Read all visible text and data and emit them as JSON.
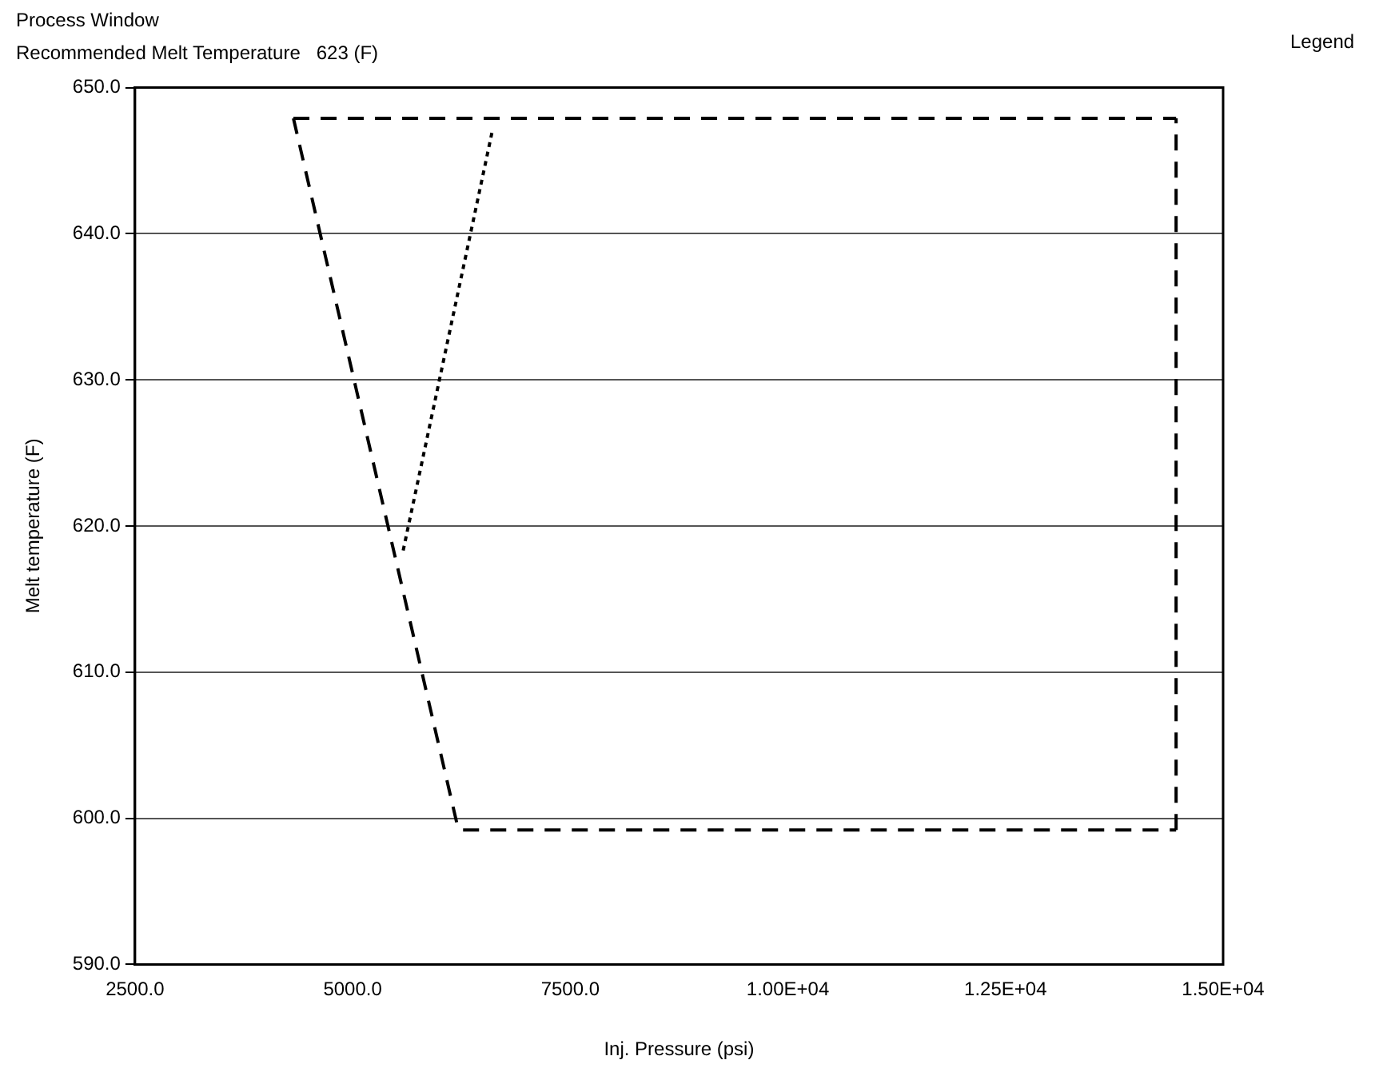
{
  "chart_data": {
    "type": "line",
    "title": "Process Window",
    "subtitle": "Recommended Melt Temperature   623 (F)",
    "xlabel": "Inj. Pressure (psi)",
    "ylabel": "Melt temperature (F)",
    "annotations": [
      "Legend"
    ],
    "series": [
      {
        "color": "#000000",
        "line_style": "dashed",
        "x": [
          4320,
          6200,
          6240,
          14460
        ],
        "values": [
          647.9,
          599.6,
          599.2,
          599.2
        ]
      },
      {
        "color": "#000000",
        "line_style": "dashed",
        "x": [
          14460,
          14460
        ],
        "values": [
          599.2,
          647.9
        ]
      },
      {
        "color": "#000000",
        "line_style": "dashed",
        "x": [
          4320,
          14460
        ],
        "values": [
          647.9,
          647.9
        ]
      },
      {
        "color": "#000000",
        "line_style": "dotted",
        "x": [
          6600,
          5580
        ],
        "values": [
          646.9,
          618.3
        ]
      }
    ],
    "xlim": [
      2500,
      15000
    ],
    "xticks": [
      {
        "value": 2500,
        "label": "2500.0"
      },
      {
        "value": 5000,
        "label": "5000.0"
      },
      {
        "value": 7500,
        "label": "7500.0"
      },
      {
        "value": 10000,
        "label": "1.00E+04"
      },
      {
        "value": 12500,
        "label": "1.25E+04"
      },
      {
        "value": 15000,
        "label": "1.50E+04"
      }
    ],
    "ylim": [
      590,
      650
    ],
    "yticks": [
      {
        "value": 590,
        "label": "590.0"
      },
      {
        "value": 600,
        "label": "600.0"
      },
      {
        "value": 610,
        "label": "610.0"
      },
      {
        "value": 620,
        "label": "620.0"
      },
      {
        "value": 630,
        "label": "630.0"
      },
      {
        "value": 640,
        "label": "640.0"
      },
      {
        "value": 650,
        "label": "650.0"
      }
    ],
    "grid": "y",
    "marker": "none",
    "legend": false
  }
}
